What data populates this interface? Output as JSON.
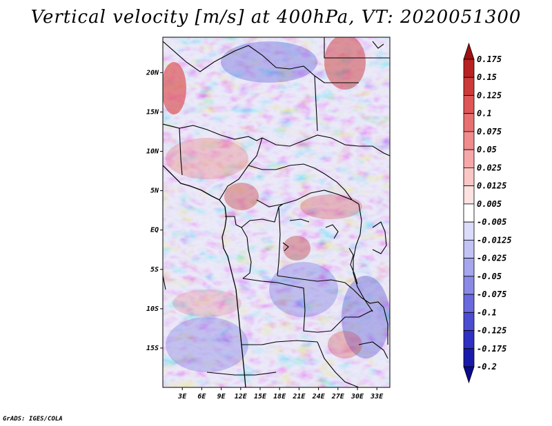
{
  "title": "Vertical velocity [m/s] at 400hPa, VT: 2020051300",
  "credit": "GrADS: IGES/COLA",
  "map": {
    "lon_range": [
      0,
      35
    ],
    "lat_range": [
      -20,
      24.5
    ],
    "lat_ticks": [
      {
        "value": 20,
        "label": "20N"
      },
      {
        "value": 15,
        "label": "15N"
      },
      {
        "value": 10,
        "label": "10N"
      },
      {
        "value": 5,
        "label": "5N"
      },
      {
        "value": 0,
        "label": "EQ"
      },
      {
        "value": -5,
        "label": "5S"
      },
      {
        "value": -10,
        "label": "10S"
      },
      {
        "value": -15,
        "label": "15S"
      }
    ],
    "lon_ticks": [
      {
        "value": 3,
        "label": "3E"
      },
      {
        "value": 6,
        "label": "6E"
      },
      {
        "value": 9,
        "label": "9E"
      },
      {
        "value": 12,
        "label": "12E"
      },
      {
        "value": 15,
        "label": "15E"
      },
      {
        "value": 18,
        "label": "18E"
      },
      {
        "value": 21,
        "label": "21E"
      },
      {
        "value": 24,
        "label": "24E"
      },
      {
        "value": 27,
        "label": "27E"
      },
      {
        "value": 30,
        "label": "30E"
      },
      {
        "value": 33,
        "label": "33E"
      }
    ]
  },
  "colorbar": {
    "labels": [
      "0.175",
      "0.15",
      "0.125",
      "0.1",
      "0.075",
      "0.05",
      "0.025",
      "0.0125",
      "0.005",
      "-0.005",
      "-0.0125",
      "-0.025",
      "-0.05",
      "-0.075",
      "-0.1",
      "-0.125",
      "-0.175",
      "-0.2"
    ],
    "colors": [
      "#a01010",
      "#b82222",
      "#cc3a3a",
      "#de5656",
      "#e97070",
      "#f08c8c",
      "#f6a8a8",
      "#fac6c6",
      "#fde2e2",
      "#ffffff",
      "#dcdcfa",
      "#c2c2f4",
      "#a6a6ee",
      "#8a8ae6",
      "#6a6ade",
      "#4c4cd2",
      "#3030c2",
      "#1a1aaa",
      "#0a0a8a"
    ]
  }
}
